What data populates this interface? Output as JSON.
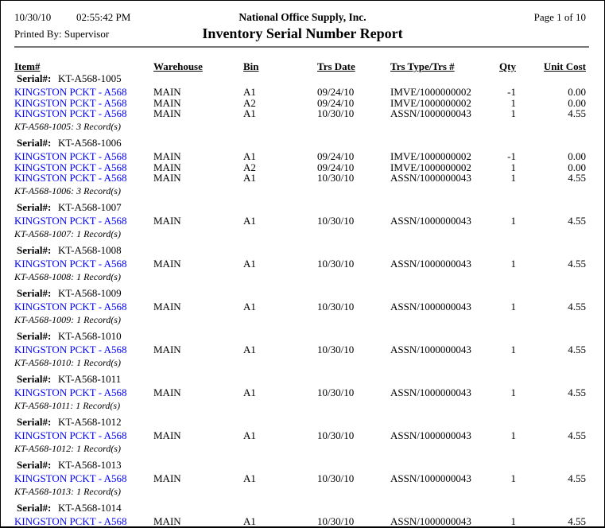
{
  "page": {
    "date": "10/30/10",
    "time": "02:55:42 PM",
    "company": "National Office Supply, Inc.",
    "page_info": "Page 1 of 10",
    "printed_by": "Printed By: Supervisor",
    "title": "Inventory Serial Number Report"
  },
  "columns": {
    "item": "Item#",
    "warehouse": "Warehouse",
    "bin": "Bin",
    "trs_date": "Trs Date",
    "trs_type": "Trs Type/Trs #",
    "qty": "Qty",
    "unit_cost": "Unit Cost"
  },
  "serial_label": "Serial#:",
  "colors": {
    "link_blue": "#0000FF",
    "rule_gray": "#767676"
  },
  "groups": [
    {
      "serial": "KT-A568-1005",
      "rows": [
        {
          "item": "KINGSTON PCKT - A568",
          "warehouse": "MAIN",
          "bin": "A1",
          "trs_date": "09/24/10",
          "trs_type": "IMVE/1000000002",
          "qty": "-1",
          "unit_cost": "0.00"
        },
        {
          "item": "KINGSTON PCKT - A568",
          "warehouse": "MAIN",
          "bin": "A2",
          "trs_date": "09/24/10",
          "trs_type": "IMVE/1000000002",
          "qty": "1",
          "unit_cost": "0.00"
        },
        {
          "item": "KINGSTON PCKT - A568",
          "warehouse": "MAIN",
          "bin": "A1",
          "trs_date": "10/30/10",
          "trs_type": "ASSN/1000000043",
          "qty": "1",
          "unit_cost": "4.55"
        }
      ],
      "summary": "KT-A568-1005: 3 Record(s)"
    },
    {
      "serial": "KT-A568-1006",
      "rows": [
        {
          "item": "KINGSTON PCKT - A568",
          "warehouse": "MAIN",
          "bin": "A1",
          "trs_date": "09/24/10",
          "trs_type": "IMVE/1000000002",
          "qty": "-1",
          "unit_cost": "0.00"
        },
        {
          "item": "KINGSTON PCKT - A568",
          "warehouse": "MAIN",
          "bin": "A2",
          "trs_date": "09/24/10",
          "trs_type": "IMVE/1000000002",
          "qty": "1",
          "unit_cost": "0.00"
        },
        {
          "item": "KINGSTON PCKT - A568",
          "warehouse": "MAIN",
          "bin": "A1",
          "trs_date": "10/30/10",
          "trs_type": "ASSN/1000000043",
          "qty": "1",
          "unit_cost": "4.55"
        }
      ],
      "summary": "KT-A568-1006: 3 Record(s)"
    },
    {
      "serial": "KT-A568-1007",
      "rows": [
        {
          "item": "KINGSTON PCKT - A568",
          "warehouse": "MAIN",
          "bin": "A1",
          "trs_date": "10/30/10",
          "trs_type": "ASSN/1000000043",
          "qty": "1",
          "unit_cost": "4.55"
        }
      ],
      "summary": "KT-A568-1007: 1 Record(s)"
    },
    {
      "serial": "KT-A568-1008",
      "rows": [
        {
          "item": "KINGSTON PCKT - A568",
          "warehouse": "MAIN",
          "bin": "A1",
          "trs_date": "10/30/10",
          "trs_type": "ASSN/1000000043",
          "qty": "1",
          "unit_cost": "4.55"
        }
      ],
      "summary": "KT-A568-1008: 1 Record(s)"
    },
    {
      "serial": "KT-A568-1009",
      "rows": [
        {
          "item": "KINGSTON PCKT - A568",
          "warehouse": "MAIN",
          "bin": "A1",
          "trs_date": "10/30/10",
          "trs_type": "ASSN/1000000043",
          "qty": "1",
          "unit_cost": "4.55"
        }
      ],
      "summary": "KT-A568-1009: 1 Record(s)"
    },
    {
      "serial": "KT-A568-1010",
      "rows": [
        {
          "item": "KINGSTON PCKT - A568",
          "warehouse": "MAIN",
          "bin": "A1",
          "trs_date": "10/30/10",
          "trs_type": "ASSN/1000000043",
          "qty": "1",
          "unit_cost": "4.55"
        }
      ],
      "summary": "KT-A568-1010: 1 Record(s)"
    },
    {
      "serial": "KT-A568-1011",
      "rows": [
        {
          "item": "KINGSTON PCKT - A568",
          "warehouse": "MAIN",
          "bin": "A1",
          "trs_date": "10/30/10",
          "trs_type": "ASSN/1000000043",
          "qty": "1",
          "unit_cost": "4.55"
        }
      ],
      "summary": "KT-A568-1011: 1 Record(s)"
    },
    {
      "serial": "KT-A568-1012",
      "rows": [
        {
          "item": "KINGSTON PCKT - A568",
          "warehouse": "MAIN",
          "bin": "A1",
          "trs_date": "10/30/10",
          "trs_type": "ASSN/1000000043",
          "qty": "1",
          "unit_cost": "4.55"
        }
      ],
      "summary": "KT-A568-1012: 1 Record(s)"
    },
    {
      "serial": "KT-A568-1013",
      "rows": [
        {
          "item": "KINGSTON PCKT - A568",
          "warehouse": "MAIN",
          "bin": "A1",
          "trs_date": "10/30/10",
          "trs_type": "ASSN/1000000043",
          "qty": "1",
          "unit_cost": "4.55"
        }
      ],
      "summary": "KT-A568-1013: 1 Record(s)"
    },
    {
      "serial": "KT-A568-1014",
      "rows": [
        {
          "item": "KINGSTON PCKT - A568",
          "warehouse": "MAIN",
          "bin": "A1",
          "trs_date": "10/30/10",
          "trs_type": "ASSN/1000000043",
          "qty": "1",
          "unit_cost": "4.55"
        }
      ],
      "summary": ""
    }
  ]
}
